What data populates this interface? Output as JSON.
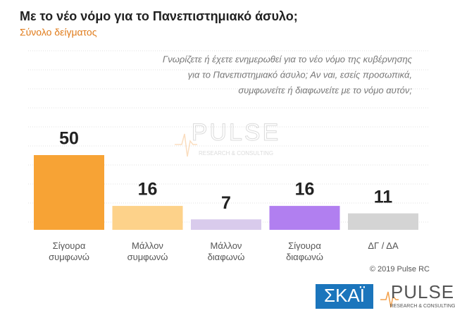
{
  "chart_data": {
    "type": "bar",
    "title": "Με το νέο νόμο για το Πανεπιστημιακό άσυλο;",
    "subtitle": "Σύνολο δείγματος",
    "question": [
      "Γνωρίζετε ή έχετε ενημερωθεί για το νέο νόμο της κυβέρνησης",
      "για το Πανεπιστημιακό άσυλο; Αν ναι, εσείς προσωπικά,",
      "συμφωνείτε ή διαφωνείτε με το νόμο αυτόν;"
    ],
    "categories": [
      "Σίγουρα συμφωνώ",
      "Μάλλον συμφωνώ",
      "Μάλλον διαφωνώ",
      "Σίγουρα διαφωνώ",
      "ΔΓ / ΔΑ"
    ],
    "values": [
      50,
      16,
      7,
      16,
      11
    ],
    "colors": [
      "#f7a335",
      "#fdd28a",
      "#d9cbec",
      "#b17ff0",
      "#d4d4d4"
    ],
    "source": "© 2019 Pulse RC",
    "channel": "ΣΚΑΪ",
    "brand": "PULSE",
    "brand_sub": "RESEARCH & CONSULTING"
  }
}
